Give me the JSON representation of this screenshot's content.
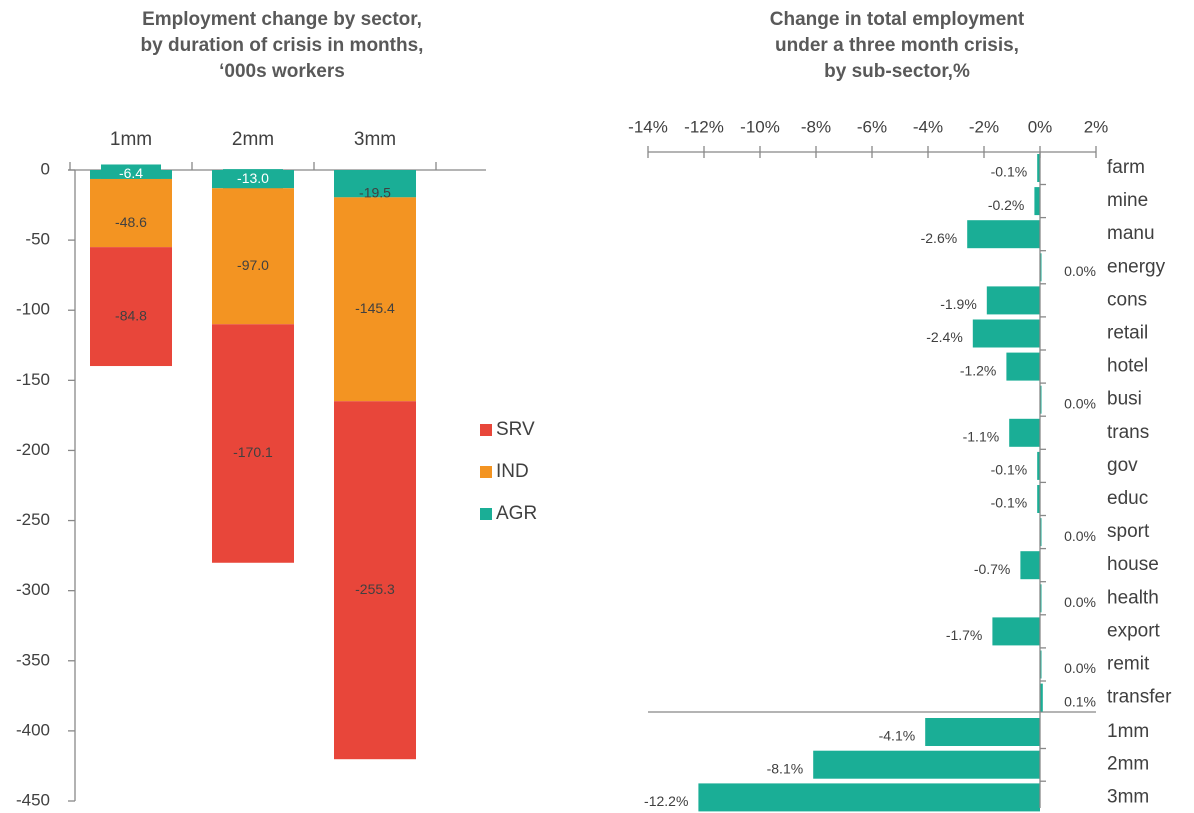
{
  "chart_data": [
    {
      "type": "stacked-bar",
      "title": [
        "Employment change by sector,",
        "by duration of crisis in months,",
        "‘000s workers"
      ],
      "categories": [
        "1mm",
        "2mm",
        "3mm"
      ],
      "series": [
        {
          "name": "AGR",
          "color": "#1aae96",
          "values": [
            -6.4,
            -13.0,
            -19.5
          ],
          "value_labels": [
            "-6.4",
            "-13.0",
            "-19.5"
          ]
        },
        {
          "name": "IND",
          "color": "#f39422",
          "values": [
            -48.6,
            -97.0,
            -145.4
          ],
          "value_labels": [
            "-48.6",
            "-97.0",
            "-145.4"
          ]
        },
        {
          "name": "SRV",
          "color": "#e8463a",
          "values": [
            -84.8,
            -170.1,
            -255.3
          ],
          "value_labels": [
            "-84.8",
            "-170.1",
            "-255.3"
          ]
        }
      ],
      "legend_order": [
        "SRV",
        "IND",
        "AGR"
      ],
      "ylim": [
        -450,
        0
      ],
      "yticks": [
        0,
        -50,
        -100,
        -150,
        -200,
        -250,
        -300,
        -350,
        -400,
        -450
      ]
    },
    {
      "type": "hbar",
      "title": [
        "Change in total employment",
        "under a three month crisis,",
        "by sub-sector,%"
      ],
      "categories": [
        "farm",
        "mine",
        "manu",
        "energy",
        "cons",
        "retail",
        "hotel",
        "busi",
        "trans",
        "gov",
        "educ",
        "sport",
        "house",
        "health",
        "export",
        "remit",
        "transfer",
        "1mm",
        "2mm",
        "3mm"
      ],
      "values": [
        -0.1,
        -0.2,
        -2.6,
        0.0,
        -1.9,
        -2.4,
        -1.2,
        0.0,
        -1.1,
        -0.1,
        -0.1,
        0.0,
        -0.7,
        0.0,
        -1.7,
        0.0,
        0.1,
        -4.1,
        -8.1,
        -12.2
      ],
      "value_labels": [
        "-0.1%",
        "-0.2%",
        "-2.6%",
        "0.0%",
        "-1.9%",
        "-2.4%",
        "-1.2%",
        "0.0%",
        "-1.1%",
        "-0.1%",
        "-0.1%",
        "0.0%",
        "-0.7%",
        "0.0%",
        "-1.7%",
        "0.0%",
        "0.1%",
        "-4.1%",
        "-8.1%",
        "-12.2%"
      ],
      "color": "#1aae96",
      "xlim": [
        -14,
        2
      ],
      "xticks": [
        {
          "value": -14,
          "label": "-14%"
        },
        {
          "value": -12,
          "label": "-12%"
        },
        {
          "value": -10,
          "label": "-10%"
        },
        {
          "value": -8,
          "label": "-8%"
        },
        {
          "value": -6,
          "label": "-6%"
        },
        {
          "value": -4,
          "label": "-4%"
        },
        {
          "value": -2,
          "label": "-2%"
        },
        {
          "value": 0,
          "label": "0%"
        },
        {
          "value": 2,
          "label": "2%"
        }
      ]
    }
  ]
}
